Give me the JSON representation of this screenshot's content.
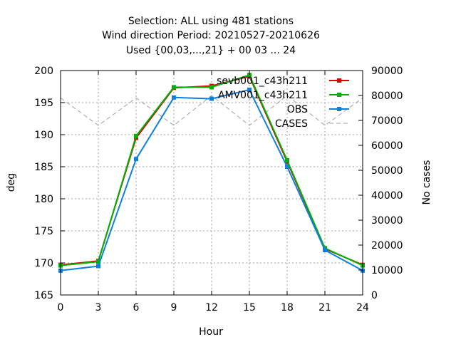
{
  "chart_data": {
    "type": "line",
    "title_lines": [
      "Selection: ALL using   481 stations",
      "Wind direction   Period: 20210527-20210626",
      "Used {00,03,...,21} + 00 03 ... 24"
    ],
    "xlabel": "Hour",
    "ylabel": "deg",
    "y2label": "No cases",
    "x": [
      0,
      3,
      6,
      9,
      12,
      15,
      18,
      21,
      24
    ],
    "x_ticks": [
      "0",
      "3",
      "6",
      "9",
      "12",
      "15",
      "18",
      "21",
      "24"
    ],
    "xlim": [
      0,
      24
    ],
    "ylim": [
      165,
      200
    ],
    "y_ticks": [
      "165",
      "170",
      "175",
      "180",
      "185",
      "190",
      "195",
      "200"
    ],
    "y2lim": [
      0,
      90000
    ],
    "y2_ticks": [
      "0",
      "10000",
      "20000",
      "30000",
      "40000",
      "50000",
      "60000",
      "70000",
      "80000",
      "90000"
    ],
    "grid": true,
    "legend_position": "top-right",
    "series": [
      {
        "name": "sevb001_c43h211",
        "color": "#e00000",
        "axis": "left",
        "style": "solid-points",
        "values": [
          169.7,
          170.3,
          189.5,
          197.3,
          197.6,
          199.1,
          185.8,
          172.2,
          169.7
        ]
      },
      {
        "name": "AMV001_c43h211",
        "color": "#00b000",
        "axis": "left",
        "style": "solid-points",
        "values": [
          169.6,
          170.2,
          189.8,
          197.4,
          197.4,
          199.3,
          186.0,
          172.3,
          169.6
        ]
      },
      {
        "name": "OBS",
        "color": "#1080e0",
        "axis": "left",
        "style": "solid-points",
        "values": [
          168.8,
          169.5,
          186.2,
          195.8,
          195.6,
          197.0,
          185.0,
          172.0,
          168.8
        ]
      },
      {
        "name": "CASES",
        "color": "#a0a0a0",
        "axis": "right",
        "style": "dashed",
        "values": [
          79000,
          68000,
          79000,
          68000,
          80000,
          68000,
          80000,
          68000,
          79000
        ]
      }
    ]
  }
}
